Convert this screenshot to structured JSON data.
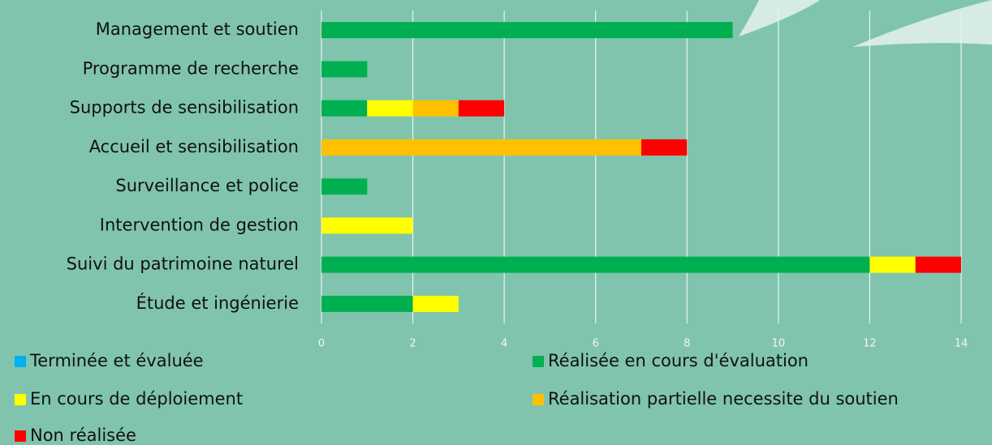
{
  "chart_data": {
    "type": "stacked-bar-horizontal",
    "categories": [
      "Management et soutien",
      "Programme de recherche",
      "Supports de sensibilisation",
      "Accueil et sensibilisation",
      "Surveillance et police",
      "Intervention de gestion",
      "Suivi du patrimoine naturel",
      "Étude et ingénierie"
    ],
    "series": [
      {
        "name": "Terminée et évaluée",
        "color": "#00b0f0",
        "values": [
          0,
          0,
          0,
          0,
          0,
          0,
          0,
          0
        ]
      },
      {
        "name": "Réalisée en cours d'évaluation",
        "color": "#00b050",
        "values": [
          9,
          1,
          1,
          0,
          1,
          0,
          12,
          2
        ]
      },
      {
        "name": "En cours de déploiement",
        "color": "#ffff00",
        "values": [
          0,
          0,
          1,
          0,
          0,
          2,
          1,
          1
        ]
      },
      {
        "name": "Réalisation partielle necessite du soutien",
        "color": "#ffc000",
        "values": [
          0,
          0,
          1,
          7,
          0,
          0,
          0,
          0
        ]
      },
      {
        "name": "Non réalisée",
        "color": "#ff0000",
        "values": [
          0,
          0,
          1,
          1,
          0,
          0,
          1,
          0
        ]
      }
    ],
    "xlim": [
      0,
      14
    ],
    "xticks": [
      0,
      2,
      4,
      6,
      8,
      10,
      12,
      14
    ],
    "grid": true
  }
}
